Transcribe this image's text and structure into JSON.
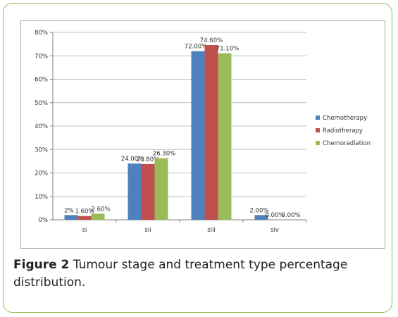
{
  "caption": {
    "label": "Figure 2",
    "text": "Tumour stage and treatment type percentage distribution."
  },
  "chart_data": {
    "type": "bar",
    "categories": [
      "si",
      "sii",
      "siii",
      "siv"
    ],
    "ylim": [
      0,
      80
    ],
    "yticks": [
      "0%",
      "10%",
      "20%",
      "30%",
      "40%",
      "50%",
      "60%",
      "70%",
      "80%"
    ],
    "grid": true,
    "legend_position": "right",
    "series": [
      {
        "name": "Chemotherapy",
        "color": "#4f81bd",
        "values": [
          2,
          24,
          72,
          2
        ],
        "labels": [
          "2%",
          "24.00%",
          "72.00%",
          "2.00%"
        ]
      },
      {
        "name": "Radiotherapy",
        "color": "#c0504d",
        "values": [
          1.6,
          23.8,
          74.6,
          0
        ],
        "labels": [
          "1.60%",
          "23.80%",
          "74.60%",
          "0.00%"
        ]
      },
      {
        "name": "Chemoradiation",
        "color": "#9bbb59",
        "values": [
          2.6,
          26.3,
          71.1,
          0
        ],
        "labels": [
          "2.60%",
          "26.30%",
          "71.10%",
          "0.00%"
        ]
      }
    ]
  }
}
